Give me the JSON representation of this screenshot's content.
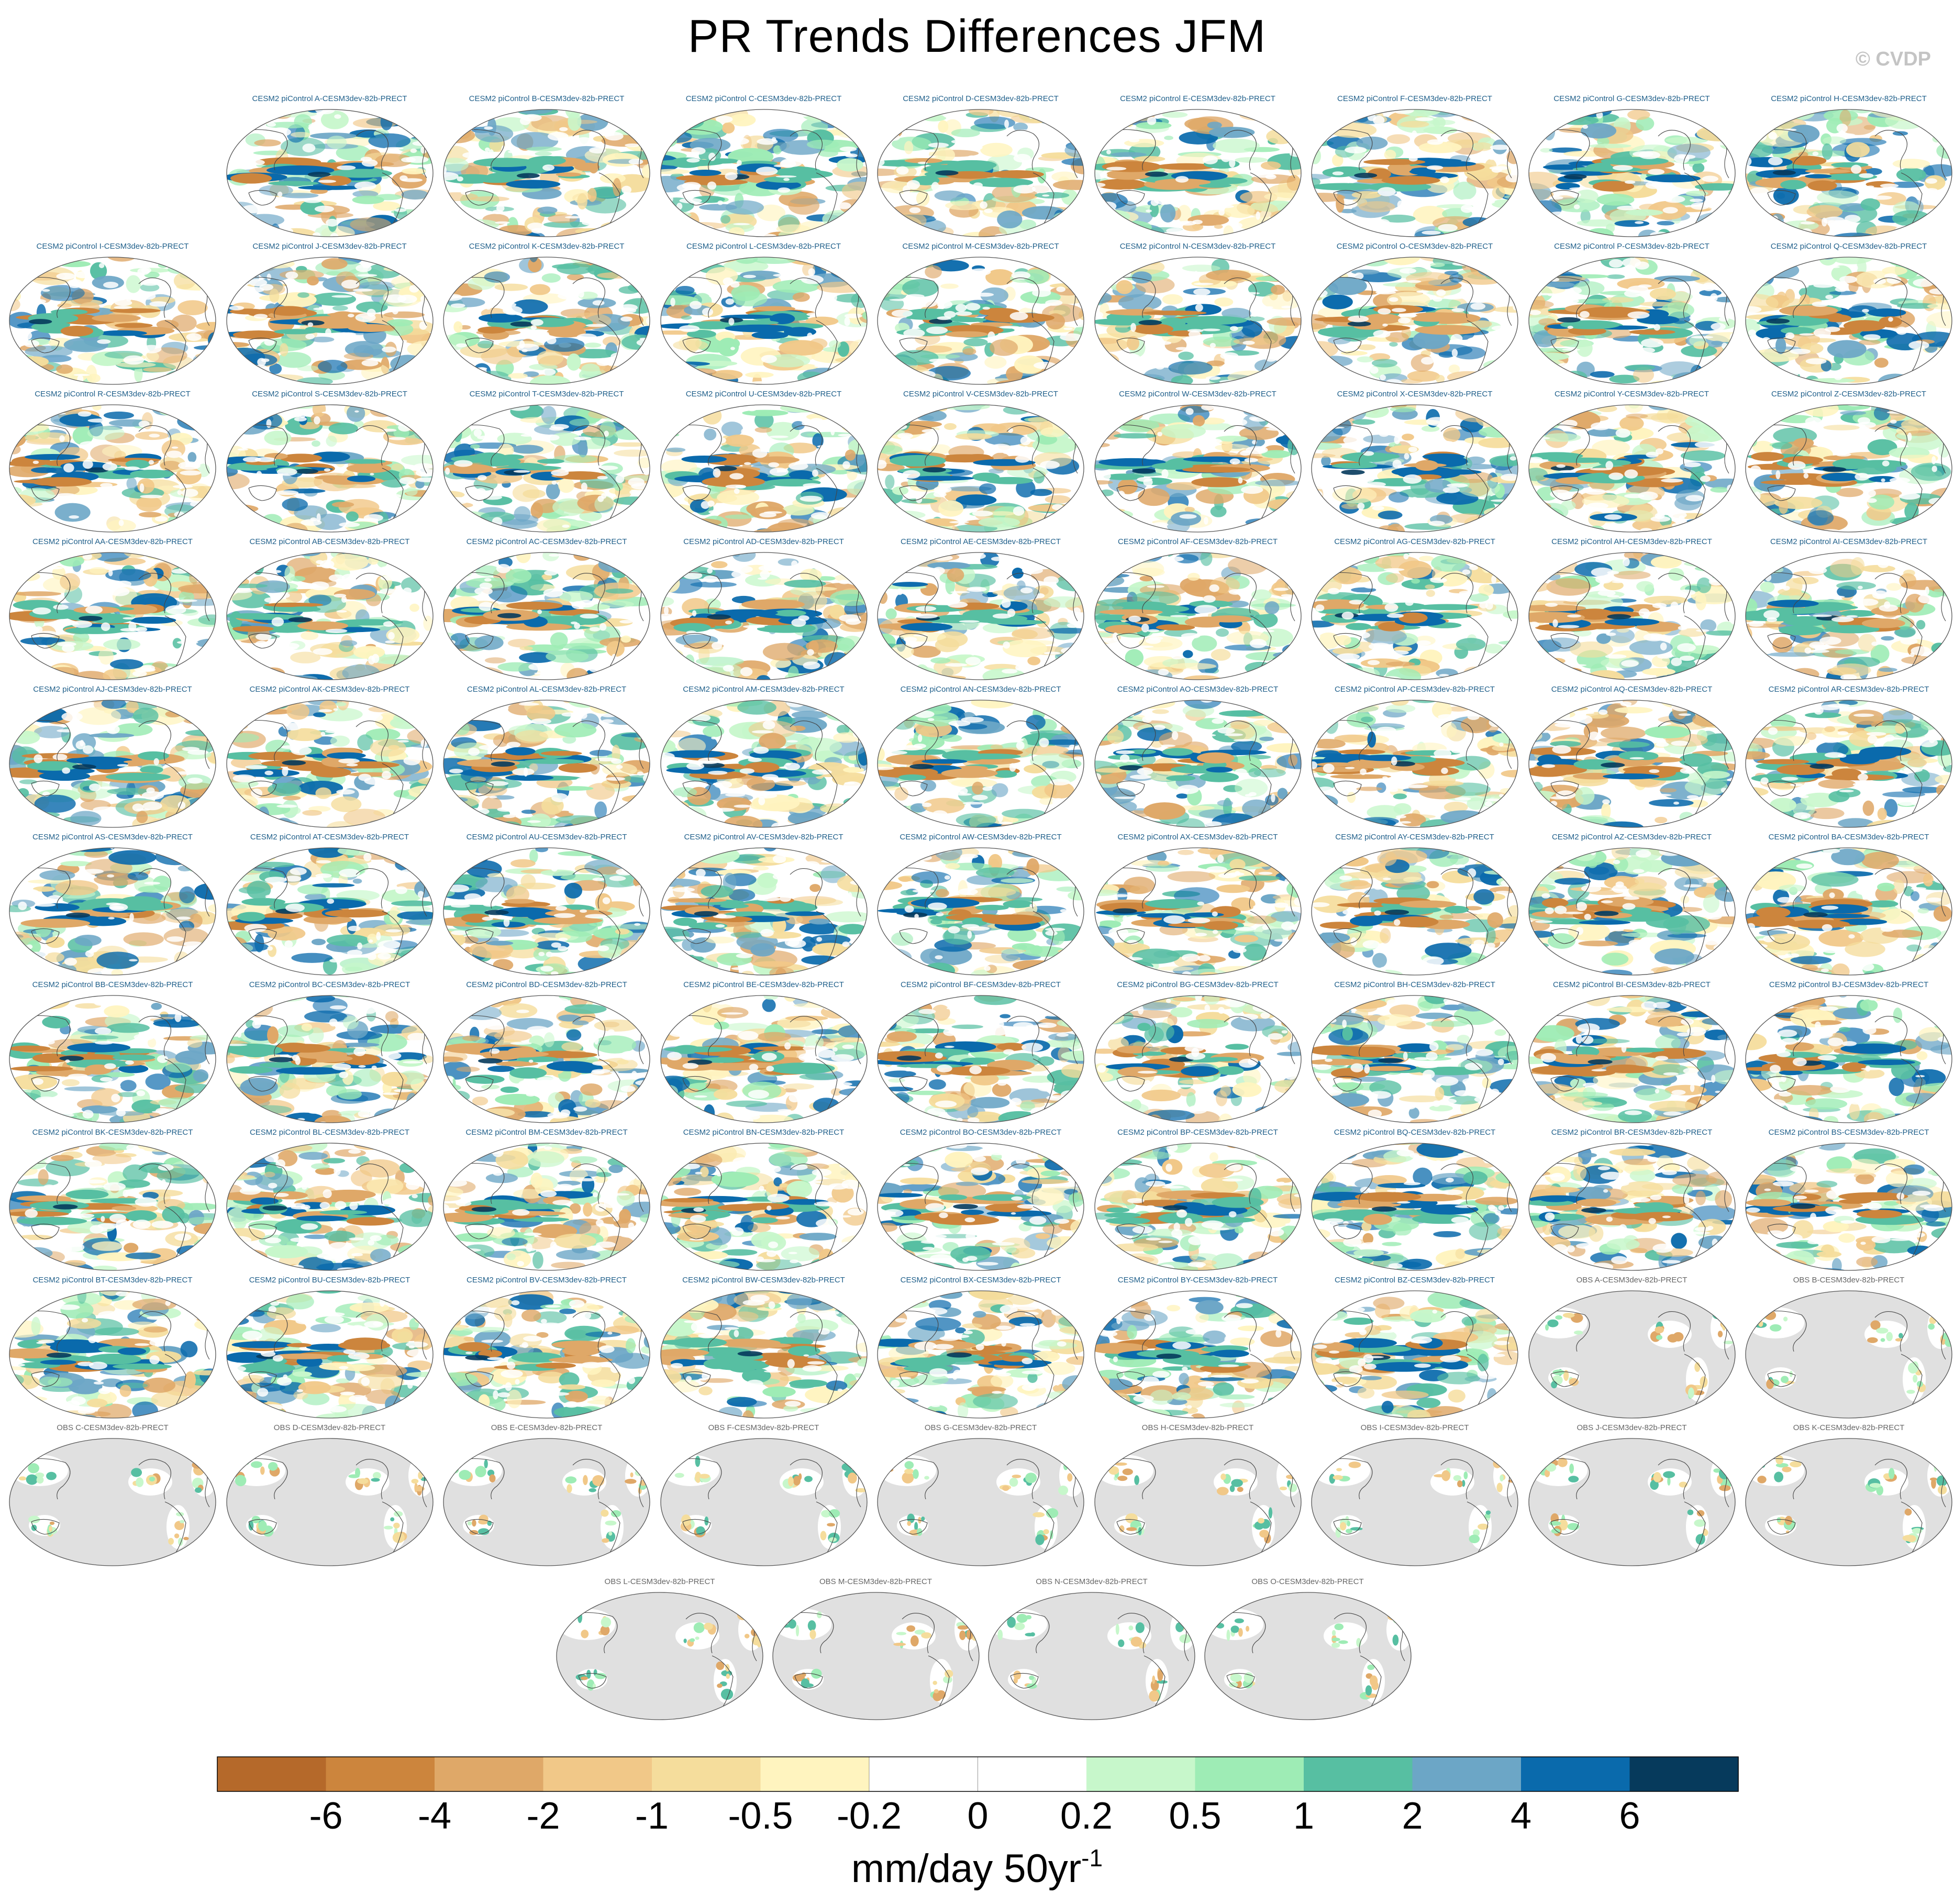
{
  "title": "PR Trends Differences JFM",
  "watermark": "© CVDP",
  "chart_data": {
    "type": "heatmap",
    "description_kind": "global map panels of precipitation trend differences",
    "units_label": "mm/day 50yr",
    "units_superscript": "-1",
    "colorbar": {
      "ticks": [
        "-6",
        "-4",
        "-2",
        "-1",
        "-0.5",
        "-0.2",
        "0",
        "0.2",
        "0.5",
        "1",
        "2",
        "4",
        "6"
      ],
      "colors": [
        "#b5692a",
        "#cc853d",
        "#dfa868",
        "#f1c888",
        "#f5dd9c",
        "#fff4bf",
        "#ffffff",
        "#ffffff",
        "#c7f7cb",
        "#9eecb5",
        "#57bfa2",
        "#6ca6c6",
        "#0a6aac",
        "#063a5c"
      ]
    },
    "land_mask_color": "#e0e0e0",
    "rows": [
      [
        "CESM2 piControl A-CESM3dev-82b-PRECT",
        "CESM2 piControl B-CESM3dev-82b-PRECT",
        "CESM2 piControl C-CESM3dev-82b-PRECT",
        "CESM2 piControl D-CESM3dev-82b-PRECT",
        "CESM2 piControl E-CESM3dev-82b-PRECT",
        "CESM2 piControl F-CESM3dev-82b-PRECT",
        "CESM2 piControl G-CESM3dev-82b-PRECT",
        "CESM2 piControl H-CESM3dev-82b-PRECT"
      ],
      [
        "CESM2 piControl I-CESM3dev-82b-PRECT",
        "CESM2 piControl J-CESM3dev-82b-PRECT",
        "CESM2 piControl K-CESM3dev-82b-PRECT",
        "CESM2 piControl L-CESM3dev-82b-PRECT",
        "CESM2 piControl M-CESM3dev-82b-PRECT",
        "CESM2 piControl N-CESM3dev-82b-PRECT",
        "CESM2 piControl O-CESM3dev-82b-PRECT",
        "CESM2 piControl P-CESM3dev-82b-PRECT",
        "CESM2 piControl Q-CESM3dev-82b-PRECT"
      ],
      [
        "CESM2 piControl R-CESM3dev-82b-PRECT",
        "CESM2 piControl S-CESM3dev-82b-PRECT",
        "CESM2 piControl T-CESM3dev-82b-PRECT",
        "CESM2 piControl U-CESM3dev-82b-PRECT",
        "CESM2 piControl V-CESM3dev-82b-PRECT",
        "CESM2 piControl W-CESM3dev-82b-PRECT",
        "CESM2 piControl X-CESM3dev-82b-PRECT",
        "CESM2 piControl Y-CESM3dev-82b-PRECT",
        "CESM2 piControl Z-CESM3dev-82b-PRECT"
      ],
      [
        "CESM2 piControl AA-CESM3dev-82b-PRECT",
        "CESM2 piControl AB-CESM3dev-82b-PRECT",
        "CESM2 piControl AC-CESM3dev-82b-PRECT",
        "CESM2 piControl AD-CESM3dev-82b-PRECT",
        "CESM2 piControl AE-CESM3dev-82b-PRECT",
        "CESM2 piControl AF-CESM3dev-82b-PRECT",
        "CESM2 piControl AG-CESM3dev-82b-PRECT",
        "CESM2 piControl AH-CESM3dev-82b-PRECT",
        "CESM2 piControl AI-CESM3dev-82b-PRECT"
      ],
      [
        "CESM2 piControl AJ-CESM3dev-82b-PRECT",
        "CESM2 piControl AK-CESM3dev-82b-PRECT",
        "CESM2 piControl AL-CESM3dev-82b-PRECT",
        "CESM2 piControl AM-CESM3dev-82b-PRECT",
        "CESM2 piControl AN-CESM3dev-82b-PRECT",
        "CESM2 piControl AO-CESM3dev-82b-PRECT",
        "CESM2 piControl AP-CESM3dev-82b-PRECT",
        "CESM2 piControl AQ-CESM3dev-82b-PRECT",
        "CESM2 piControl AR-CESM3dev-82b-PRECT"
      ],
      [
        "CESM2 piControl AS-CESM3dev-82b-PRECT",
        "CESM2 piControl AT-CESM3dev-82b-PRECT",
        "CESM2 piControl AU-CESM3dev-82b-PRECT",
        "CESM2 piControl AV-CESM3dev-82b-PRECT",
        "CESM2 piControl AW-CESM3dev-82b-PRECT",
        "CESM2 piControl AX-CESM3dev-82b-PRECT",
        "CESM2 piControl AY-CESM3dev-82b-PRECT",
        "CESM2 piControl AZ-CESM3dev-82b-PRECT",
        "CESM2 piControl BA-CESM3dev-82b-PRECT"
      ],
      [
        "CESM2 piControl BB-CESM3dev-82b-PRECT",
        "CESM2 piControl BC-CESM3dev-82b-PRECT",
        "CESM2 piControl BD-CESM3dev-82b-PRECT",
        "CESM2 piControl BE-CESM3dev-82b-PRECT",
        "CESM2 piControl BF-CESM3dev-82b-PRECT",
        "CESM2 piControl BG-CESM3dev-82b-PRECT",
        "CESM2 piControl BH-CESM3dev-82b-PRECT",
        "CESM2 piControl BI-CESM3dev-82b-PRECT",
        "CESM2 piControl BJ-CESM3dev-82b-PRECT"
      ],
      [
        "CESM2 piControl BK-CESM3dev-82b-PRECT",
        "CESM2 piControl BL-CESM3dev-82b-PRECT",
        "CESM2 piControl BM-CESM3dev-82b-PRECT",
        "CESM2 piControl BN-CESM3dev-82b-PRECT",
        "CESM2 piControl BO-CESM3dev-82b-PRECT",
        "CESM2 piControl BP-CESM3dev-82b-PRECT",
        "CESM2 piControl BQ-CESM3dev-82b-PRECT",
        "CESM2 piControl BR-CESM3dev-82b-PRECT",
        "CESM2 piControl BS-CESM3dev-82b-PRECT"
      ],
      [
        "CESM2 piControl BT-CESM3dev-82b-PRECT",
        "CESM2 piControl BU-CESM3dev-82b-PRECT",
        "CESM2 piControl BV-CESM3dev-82b-PRECT",
        "CESM2 piControl BW-CESM3dev-82b-PRECT",
        "CESM2 piControl BX-CESM3dev-82b-PRECT",
        "CESM2 piControl BY-CESM3dev-82b-PRECT",
        "CESM2 piControl BZ-CESM3dev-82b-PRECT",
        "OBS A-CESM3dev-82b-PRECT",
        "OBS B-CESM3dev-82b-PRECT"
      ],
      [
        "OBS C-CESM3dev-82b-PRECT",
        "OBS D-CESM3dev-82b-PRECT",
        "OBS E-CESM3dev-82b-PRECT",
        "OBS F-CESM3dev-82b-PRECT",
        "OBS G-CESM3dev-82b-PRECT",
        "OBS H-CESM3dev-82b-PRECT",
        "OBS I-CESM3dev-82b-PRECT",
        "OBS J-CESM3dev-82b-PRECT",
        "OBS K-CESM3dev-82b-PRECT"
      ],
      [
        "OBS L-CESM3dev-82b-PRECT",
        "OBS M-CESM3dev-82b-PRECT",
        "OBS N-CESM3dev-82b-PRECT",
        "OBS O-CESM3dev-82b-PRECT"
      ]
    ]
  }
}
